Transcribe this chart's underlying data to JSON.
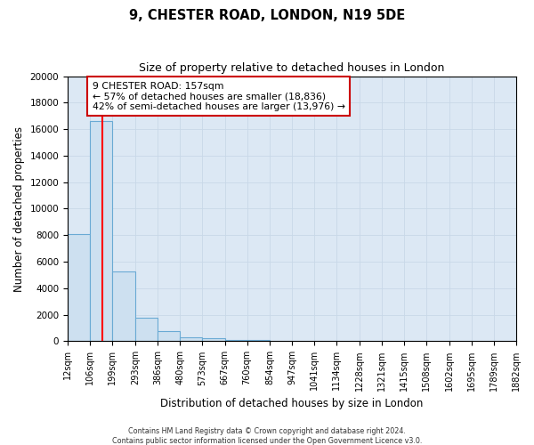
{
  "title": "9, CHESTER ROAD, LONDON, N19 5DE",
  "subtitle": "Size of property relative to detached houses in London",
  "xlabel": "Distribution of detached houses by size in London",
  "ylabel": "Number of detached properties",
  "bin_edges": [
    12,
    106,
    199,
    293,
    386,
    480,
    573,
    667,
    760,
    854,
    947,
    1041,
    1134,
    1228,
    1321,
    1415,
    1508,
    1602,
    1695,
    1789,
    1882
  ],
  "bin_labels": [
    "12sqm",
    "106sqm",
    "199sqm",
    "293sqm",
    "386sqm",
    "480sqm",
    "573sqm",
    "667sqm",
    "760sqm",
    "854sqm",
    "947sqm",
    "1041sqm",
    "1134sqm",
    "1228sqm",
    "1321sqm",
    "1415sqm",
    "1508sqm",
    "1602sqm",
    "1695sqm",
    "1789sqm",
    "1882sqm"
  ],
  "bar_heights": [
    8100,
    16600,
    5300,
    1800,
    750,
    300,
    200,
    100,
    100,
    0,
    0,
    0,
    0,
    0,
    0,
    0,
    0,
    0,
    0,
    0
  ],
  "bar_color": "#cde0f0",
  "bar_edge_color": "#6aaad4",
  "red_line_x": 157,
  "ylim": [
    0,
    20000
  ],
  "yticks": [
    0,
    2000,
    4000,
    6000,
    8000,
    10000,
    12000,
    14000,
    16000,
    18000,
    20000
  ],
  "annotation_title": "9 CHESTER ROAD: 157sqm",
  "annotation_line1": "← 57% of detached houses are smaller (18,836)",
  "annotation_line2": "42% of semi-detached houses are larger (13,976) →",
  "annotation_box_color": "#ffffff",
  "annotation_box_edge": "#cc0000",
  "grid_color": "#c8d8e8",
  "bg_color": "#dce8f4",
  "fig_bg_color": "#ffffff",
  "footnote1": "Contains HM Land Registry data © Crown copyright and database right 2024.",
  "footnote2": "Contains public sector information licensed under the Open Government Licence v3.0."
}
